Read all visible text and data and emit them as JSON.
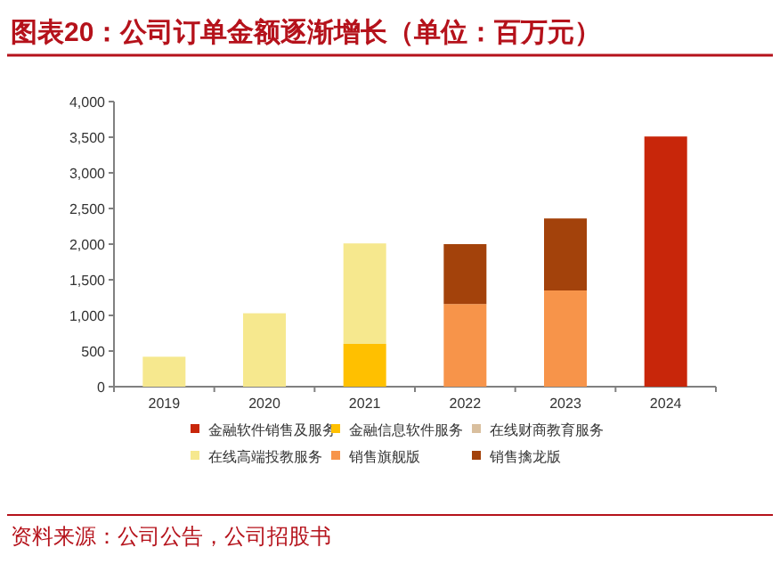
{
  "chart_data": {
    "type": "bar",
    "title": "图表20：公司订单金额逐渐增长（单位：百万元）",
    "stacked": true,
    "categories": [
      "2019",
      "2020",
      "2021",
      "2022",
      "2023",
      "2024"
    ],
    "series": [
      {
        "name": "金融软件销售及服务",
        "color": "#c8260a",
        "values": [
          null,
          null,
          null,
          null,
          null,
          3510
        ]
      },
      {
        "name": "金融信息软件服务",
        "color": "#ffc000",
        "values": [
          null,
          null,
          600,
          null,
          null,
          null
        ]
      },
      {
        "name": "在线财商教育服务",
        "color": "#d9bf9e",
        "values": [
          null,
          null,
          null,
          null,
          null,
          null
        ]
      },
      {
        "name": "在线高端投教服务",
        "color": "#f6e88e",
        "values": [
          420,
          1030,
          1410,
          null,
          null,
          null
        ]
      },
      {
        "name": "销售旗舰版",
        "color": "#f7944a",
        "values": [
          null,
          null,
          null,
          1160,
          1350,
          null
        ]
      },
      {
        "name": "销售擒龙版",
        "color": "#a3420b",
        "values": [
          null,
          null,
          null,
          840,
          1010,
          null
        ]
      }
    ],
    "ylim": [
      0,
      4000
    ],
    "yticks": [
      {
        "value": 0,
        "label": "0"
      },
      {
        "value": 500,
        "label": "500"
      },
      {
        "value": 1000,
        "label": "1,000"
      },
      {
        "value": 1500,
        "label": "1,500"
      },
      {
        "value": 2000,
        "label": "2,000"
      },
      {
        "value": 2500,
        "label": "2,500"
      },
      {
        "value": 3000,
        "label": "3,000"
      },
      {
        "value": 3500,
        "label": "3,500"
      },
      {
        "value": 4000,
        "label": "4,000"
      }
    ],
    "legend": "bottom",
    "grid": false,
    "annotations": [
      "资料来源：公司公告，公司招股书"
    ]
  }
}
